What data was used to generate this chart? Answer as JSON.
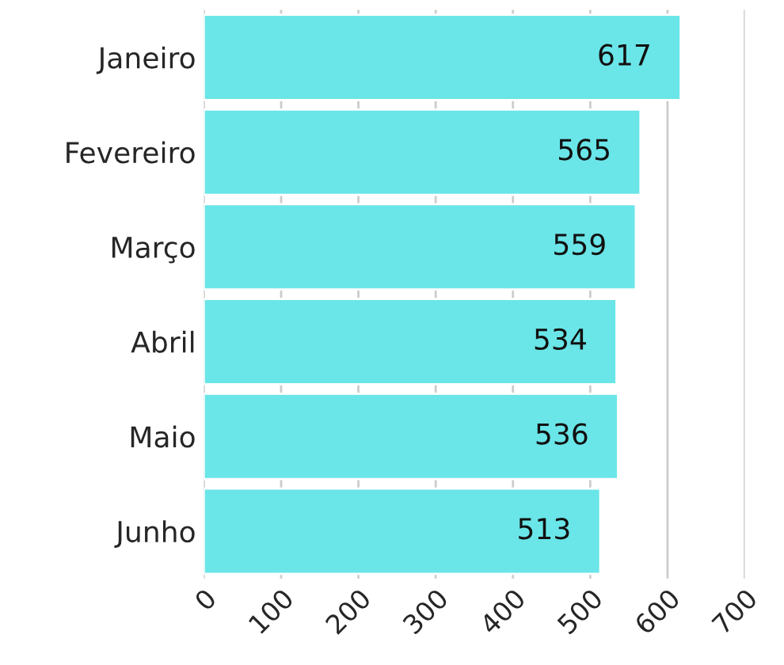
{
  "chart_data": {
    "type": "bar",
    "orientation": "horizontal",
    "categories": [
      "Janeiro",
      "Fevereiro",
      "Março",
      "Abril",
      "Maio",
      "Junho"
    ],
    "values": [
      617,
      565,
      559,
      534,
      536,
      513
    ],
    "color": "#6ae5e8",
    "xlim": [
      0,
      700
    ],
    "xticks": [
      0,
      100,
      200,
      300,
      400,
      500,
      600,
      700
    ],
    "grid": "x",
    "data_labels": true
  }
}
